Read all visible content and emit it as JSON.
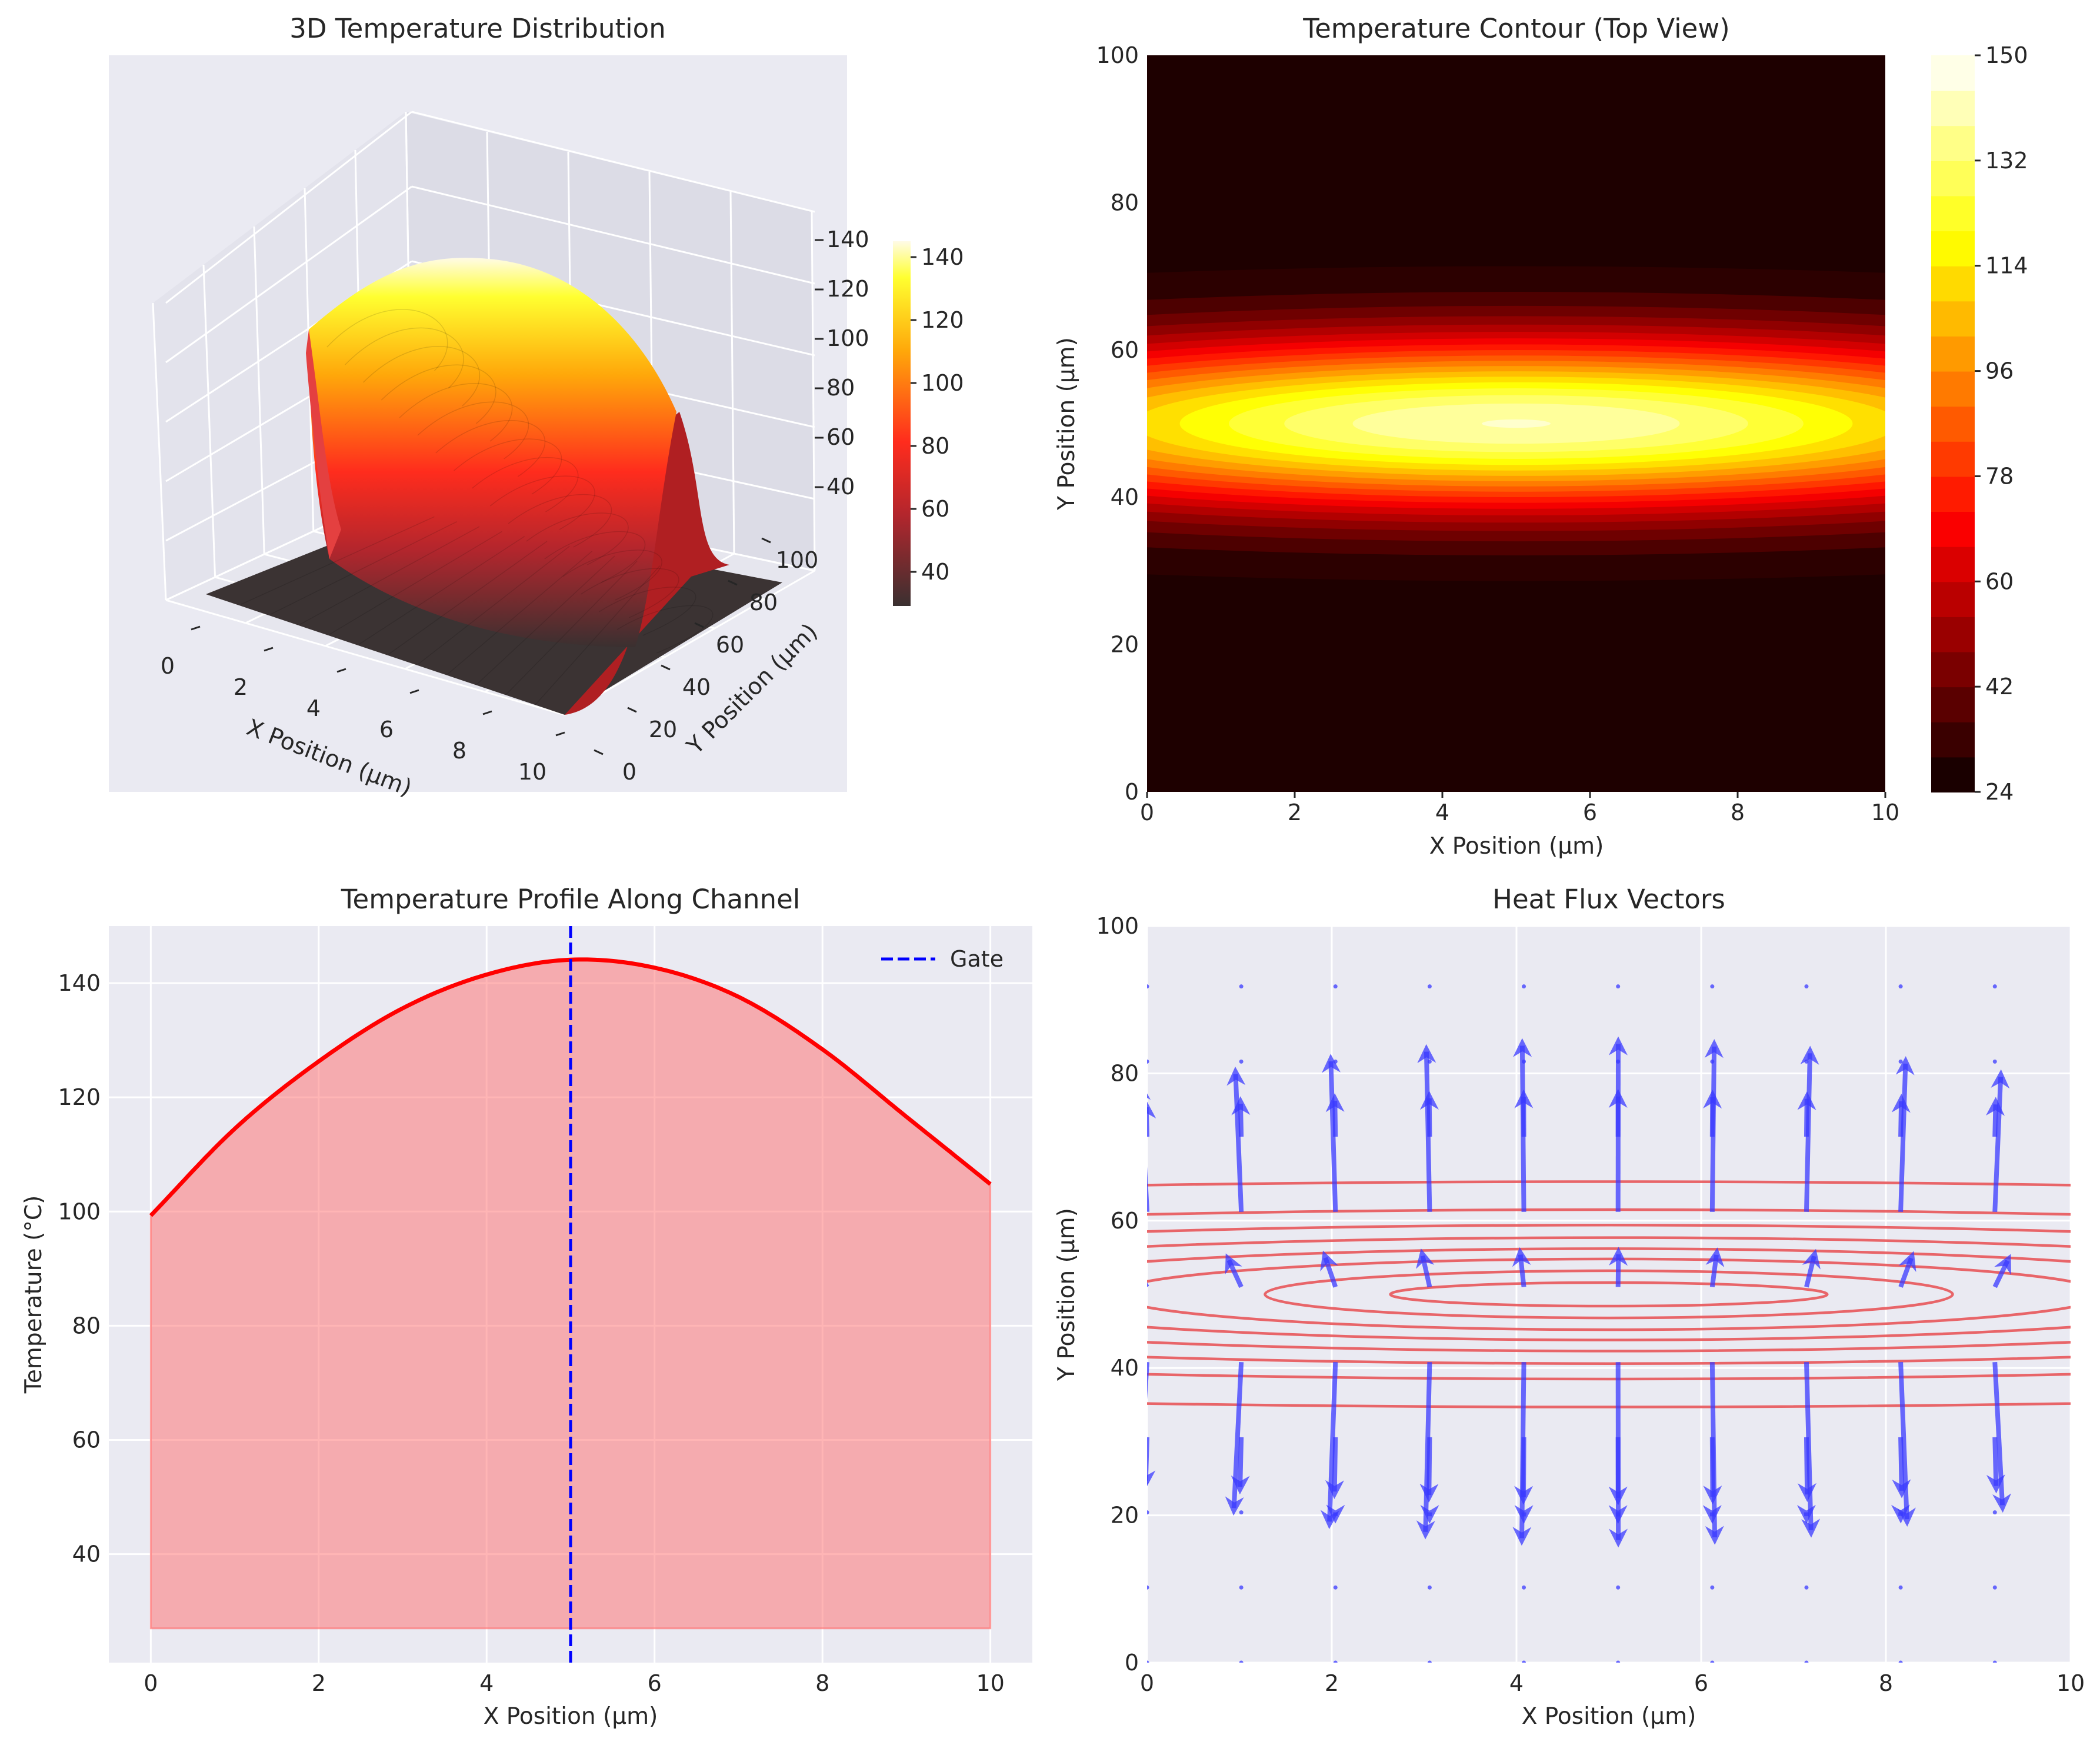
{
  "chart_data": [
    {
      "type": "surface3d",
      "title": "3D Temperature Distribution",
      "xlabel": "X Position (µm)",
      "ylabel": "Y Position (µm)",
      "zlabel": "Temperature (°C)",
      "x_ticks": [
        "0",
        "2",
        "4",
        "6",
        "8",
        "10"
      ],
      "y_ticks": [
        "0",
        "20",
        "40",
        "60",
        "80",
        "100"
      ],
      "z_ticks": [
        "40",
        "60",
        "80",
        "100",
        "120",
        "140"
      ],
      "colorbar_ticks": [
        "40",
        "60",
        "80",
        "100",
        "120",
        "140"
      ],
      "colormap": "hot",
      "peak_temperature": 144,
      "ambient_temperature": 27,
      "hotspot_x": 5,
      "hotspot_y": 50
    },
    {
      "type": "contourf",
      "title": "Temperature Contour (Top View)",
      "xlabel": "X Position (µm)",
      "ylabel": "Y Position (µm)",
      "x_ticks": [
        "0",
        "2",
        "4",
        "6",
        "8",
        "10"
      ],
      "y_ticks": [
        "0",
        "20",
        "40",
        "60",
        "80",
        "100"
      ],
      "xlim": [
        0,
        10
      ],
      "ylim": [
        0,
        100
      ],
      "colorbar_ticks": [
        "24",
        "42",
        "60",
        "78",
        "96",
        "114",
        "132",
        "150"
      ],
      "colorbar_range": [
        24,
        150
      ],
      "levels": 21,
      "colormap": "hot"
    },
    {
      "type": "line",
      "title": "Temperature Profile Along Channel",
      "xlabel": "X Position (µm)",
      "ylabel": "Temperature (°C)",
      "x_ticks": [
        "0",
        "2",
        "4",
        "6",
        "8",
        "10"
      ],
      "y_ticks": [
        "40",
        "60",
        "80",
        "100",
        "120",
        "140"
      ],
      "xlim": [
        -0.5,
        10.5
      ],
      "ylim": [
        21,
        150
      ],
      "x": [
        0,
        1,
        2,
        3,
        4,
        5,
        6,
        7,
        8,
        9,
        10
      ],
      "y": [
        99.3,
        114.5,
        126.3,
        135.6,
        141.5,
        144.1,
        142.7,
        137.6,
        128.4,
        116.6,
        104.8
      ],
      "fill_baseline": 27,
      "line_color": "#ff0000",
      "fill_color": "#ff6b6b",
      "gate_x": 5,
      "legend": [
        "Gate"
      ],
      "legend_position": "top-right"
    },
    {
      "type": "quiver",
      "title": "Heat Flux Vectors",
      "xlabel": "X Position (µm)",
      "ylabel": "Y Position (µm)",
      "x_ticks": [
        "0",
        "2",
        "4",
        "6",
        "8",
        "10"
      ],
      "y_ticks": [
        "0",
        "20",
        "40",
        "60",
        "80",
        "100"
      ],
      "xlim": [
        0,
        10
      ],
      "ylim": [
        0,
        100
      ],
      "arrow_color": "#3a3aff",
      "contour_color": "#e8575a",
      "grid_x": [
        0,
        1.02,
        2.04,
        3.06,
        4.08,
        5.1,
        6.12,
        7.14,
        8.16,
        9.18
      ],
      "grid_y": [
        0,
        10.2,
        20.4,
        30.6,
        40.8,
        51,
        61.2,
        71.4,
        81.6,
        91.8
      ],
      "contour_levels_y_halfwidth": [
        15.3,
        11.5,
        9.4,
        7.7,
        6.2,
        4.8,
        3.2,
        1.6
      ]
    }
  ]
}
